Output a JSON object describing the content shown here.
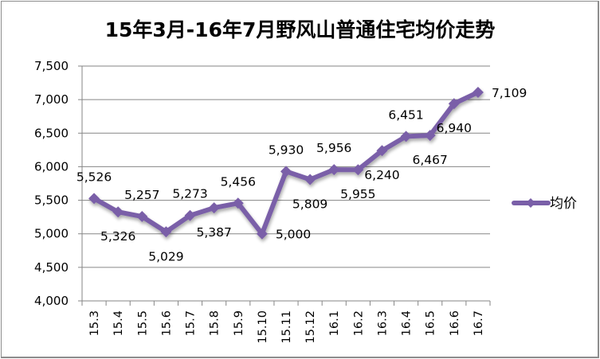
{
  "chart_data": {
    "type": "line",
    "title": "15年3月-16年7月野风山普通住宅均价走势",
    "xlabel": "",
    "ylabel": "",
    "categories": [
      "15.3",
      "15.4",
      "15.5",
      "15.6",
      "15.7",
      "15.8",
      "15.9",
      "15.10",
      "15.11",
      "15.12",
      "16.1",
      "16.2",
      "16.3",
      "16.4",
      "16.5",
      "16.6",
      "16.7"
    ],
    "series": [
      {
        "name": "均价",
        "color": "#7a5fa8",
        "marker": "diamond",
        "values": [
          5526,
          5326,
          5257,
          5029,
          5273,
          5387,
          5456,
          5000,
          5930,
          5809,
          5956,
          5955,
          6240,
          6451,
          6467,
          6940,
          7109
        ],
        "labels": [
          "5,526",
          "5,326",
          "5,257",
          "5,029",
          "5,273",
          "5,387",
          "5,456",
          "5,000",
          "5,930",
          "5,809",
          "5,956",
          "5,955",
          "6,240",
          "6,451",
          "6,467",
          "6,940",
          "7,109"
        ],
        "label_positions": [
          "above",
          "below",
          "above",
          "below",
          "above",
          "below",
          "above",
          "right",
          "above",
          "below",
          "above",
          "below",
          "below",
          "above",
          "below",
          "below",
          "right"
        ]
      }
    ],
    "ylim": [
      4000,
      7500
    ],
    "yticks": [
      4000,
      4500,
      5000,
      5500,
      6000,
      6500,
      7000,
      7500
    ],
    "ytick_labels": [
      "4,000",
      "4,500",
      "5,000",
      "5,500",
      "6,000",
      "6,500",
      "7,000",
      "7,500"
    ],
    "grid": true,
    "legend": {
      "position": "right",
      "entries": [
        "均价"
      ]
    },
    "colors": {
      "line": "#7a5fa8",
      "grid": "#868686",
      "frame": "#8c8c8c"
    }
  }
}
